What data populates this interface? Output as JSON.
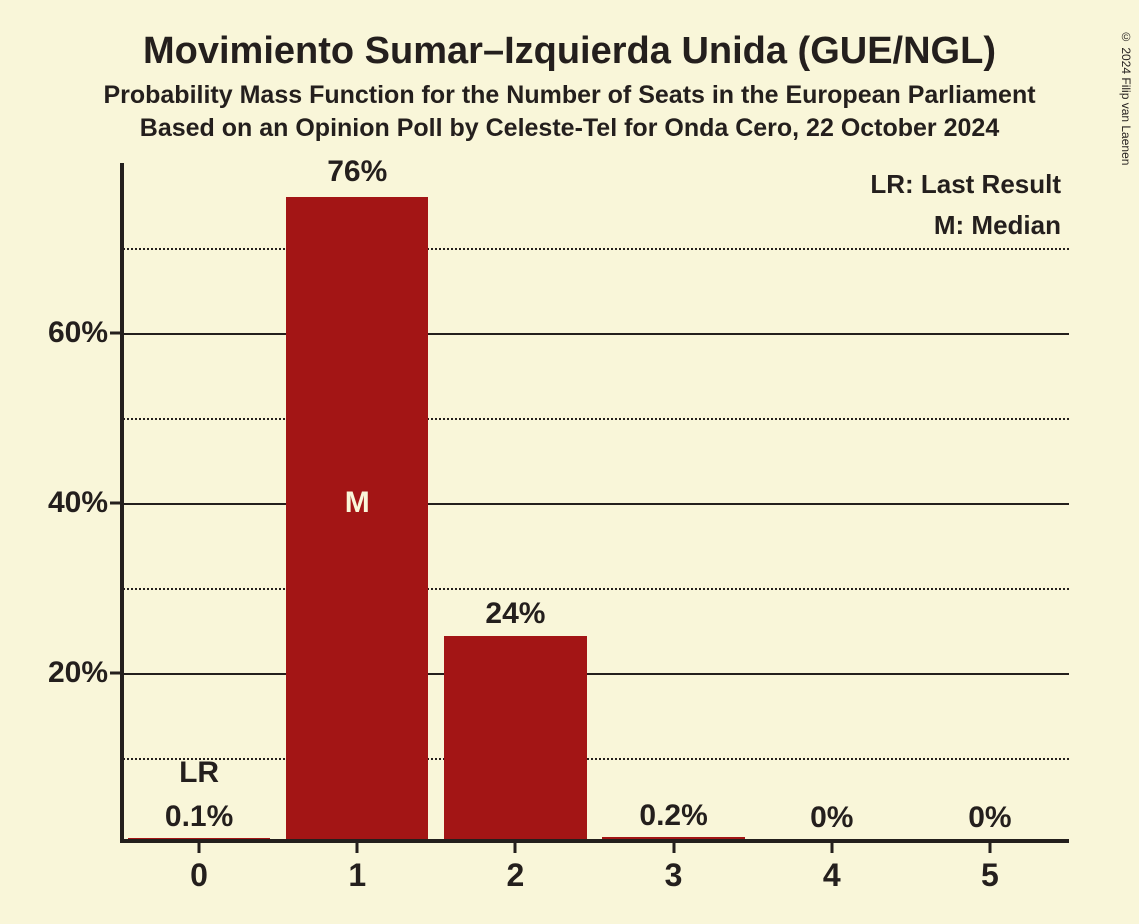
{
  "title": "Movimiento Sumar–Izquierda Unida (GUE/NGL)",
  "title_fontsize": 38,
  "subtitle1": "Probability Mass Function for the Number of Seats in the European Parliament",
  "subtitle2": "Based on an Opinion Poll by Celeste-Tel for Onda Cero, 22 October 2024",
  "subtitle_fontsize": 25,
  "copyright": "© 2024 Filip van Laenen",
  "chart": {
    "type": "bar",
    "background_color": "#f9f6d9",
    "bar_color": "#a31515",
    "text_color": "#241f1d",
    "median_label_color": "#f9f6d9",
    "axis_color": "#241f1d",
    "ylim_max": 80,
    "y_major_ticks": [
      20,
      40,
      60
    ],
    "y_minor_ticks": [
      10,
      30,
      50,
      70
    ],
    "y_tick_labels": [
      "20%",
      "40%",
      "60%"
    ],
    "y_label_fontsize": 30,
    "x_label_fontsize": 32,
    "value_label_fontsize": 30,
    "marker_fontsize": 30,
    "legend_fontsize": 26,
    "categories": [
      "0",
      "1",
      "2",
      "3",
      "4",
      "5"
    ],
    "values": [
      0.1,
      76,
      24,
      0.2,
      0,
      0
    ],
    "value_labels": [
      "0.1%",
      "76%",
      "24%",
      "0.2%",
      "0%",
      "0%"
    ],
    "markers": [
      {
        "index": 0,
        "text": "LR",
        "position": "above_value"
      },
      {
        "index": 1,
        "text": "M",
        "position": "in_bar"
      }
    ],
    "legend": {
      "lines": [
        "LR: Last Result",
        "M: Median"
      ]
    },
    "bar_width_ratio": 0.9
  }
}
